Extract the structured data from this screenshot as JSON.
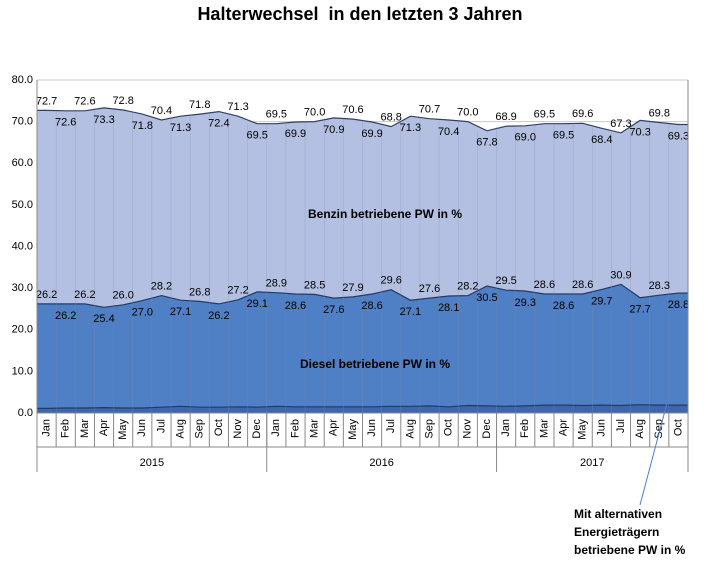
{
  "chart_data": {
    "type": "area",
    "title": "Halterwechsel  in den letzten 3 Jahren",
    "groups": [
      {
        "label": "2015",
        "categories": [
          "Jan",
          "Feb",
          "Mar",
          "Apr",
          "May",
          "Jun",
          "Jul",
          "Aug",
          "Sep",
          "Oct",
          "Nov",
          "Dec"
        ]
      },
      {
        "label": "2016",
        "categories": [
          "Jan",
          "Feb",
          "Mar",
          "Apr",
          "May",
          "Jun",
          "Jul",
          "Aug",
          "Sep",
          "Oct",
          "Nov",
          "Dec"
        ]
      },
      {
        "label": "2017",
        "categories": [
          "Jan",
          "Feb",
          "Mar",
          "Apr",
          "May",
          "Jun",
          "Jul",
          "Aug",
          "Sep",
          "Oct"
        ]
      }
    ],
    "ylim": [
      0,
      80
    ],
    "yticks": [
      {
        "value": 0,
        "label": "0.0"
      },
      {
        "value": 10,
        "label": "10.0"
      },
      {
        "value": 20,
        "label": "20.0"
      },
      {
        "value": 30,
        "label": "30.0"
      },
      {
        "value": 40,
        "label": "40.0"
      },
      {
        "value": 50,
        "label": "50.0"
      },
      {
        "value": 60,
        "label": "60.0"
      },
      {
        "value": 70,
        "label": "70.0"
      },
      {
        "value": 80,
        "label": "80.0"
      }
    ],
    "grid": true,
    "series": [
      {
        "name": "Benzin betriebene PW in %",
        "color": "#b3c0e2",
        "line_color": "#2f3f66",
        "values": [
          72.7,
          72.6,
          72.6,
          73.3,
          72.8,
          71.8,
          70.4,
          71.3,
          71.8,
          72.4,
          71.3,
          69.5,
          69.5,
          69.9,
          70.0,
          70.9,
          70.6,
          69.9,
          68.8,
          71.3,
          70.7,
          70.4,
          70.0,
          67.8,
          68.9,
          69.0,
          69.5,
          69.5,
          69.6,
          68.4,
          67.3,
          70.3,
          69.8,
          69.3
        ],
        "value_labels": [
          "72.7",
          "72.6",
          "72.6",
          "73.3",
          "72.8",
          "71.8",
          "70.4",
          "71.3",
          "71.8",
          "72.4",
          "71.3",
          "69.5",
          "69.5",
          "69.9",
          "70.0",
          "70.9",
          "70.6",
          "69.9",
          "68.8",
          "71.3",
          "70.7",
          "70.4",
          "70.0",
          "67.8",
          "68.9",
          "69.0",
          "69.5",
          "69.5",
          "69.6",
          "68.4",
          "67.3",
          "70.3",
          "69.8",
          "69.3"
        ]
      },
      {
        "name": "Diesel betriebene PW in %",
        "color": "#4f7fc4",
        "line_color": "#243a66",
        "values": [
          26.2,
          26.2,
          26.2,
          25.4,
          26.0,
          27.0,
          28.2,
          27.1,
          26.8,
          26.2,
          27.2,
          29.1,
          28.9,
          28.6,
          28.5,
          27.6,
          27.9,
          28.6,
          29.6,
          27.1,
          27.6,
          28.1,
          28.2,
          30.5,
          29.5,
          29.3,
          28.6,
          28.6,
          28.6,
          29.7,
          30.9,
          27.7,
          28.3,
          28.8
        ],
        "value_labels": [
          "26.2",
          "26.2",
          "26.2",
          "25.4",
          "26.0",
          "27.0",
          "28.2",
          "27.1",
          "26.8",
          "26.2",
          "27.2",
          "29.1",
          "28.9",
          "28.6",
          "28.5",
          "27.6",
          "27.9",
          "28.6",
          "29.6",
          "27.1",
          "27.6",
          "28.1",
          "28.2",
          "30.5",
          "29.5",
          "29.3",
          "28.6",
          "28.6",
          "28.6",
          "29.7",
          "30.9",
          "27.7",
          "28.3",
          "28.8"
        ]
      },
      {
        "name": "Mit alternativen Energieträgern betriebene PW in %",
        "color": "#3d66ad",
        "line_color": "#243a66",
        "values": [
          1.1,
          1.2,
          1.2,
          1.3,
          1.2,
          1.2,
          1.4,
          1.6,
          1.4,
          1.4,
          1.5,
          1.4,
          1.6,
          1.5,
          1.5,
          1.5,
          1.5,
          1.5,
          1.6,
          1.6,
          1.7,
          1.5,
          1.8,
          1.7,
          1.6,
          1.7,
          1.9,
          1.9,
          1.8,
          1.9,
          1.8,
          2.0,
          1.9,
          1.9
        ]
      }
    ],
    "annotation": [
      "Mit alternativen",
      "Energieträgern",
      "betriebene PW in %"
    ]
  }
}
